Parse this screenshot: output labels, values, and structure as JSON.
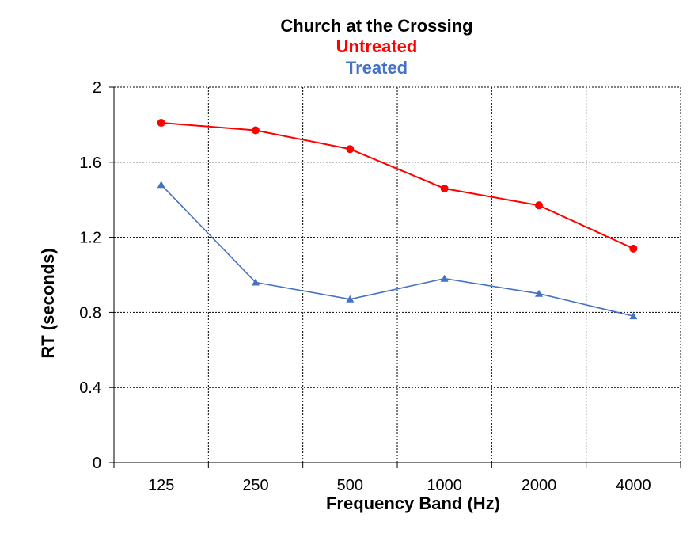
{
  "chart_data": {
    "type": "line",
    "title": "Church at the Crossing",
    "subtitles": [
      {
        "text": "Untreated",
        "color": "#ff0000"
      },
      {
        "text": "Treated",
        "color": "#4472c4"
      }
    ],
    "xlabel": "Frequency Band (Hz)",
    "ylabel": "RT (seconds)",
    "categories": [
      "125",
      "250",
      "500",
      "1000",
      "2000",
      "4000"
    ],
    "ylim": [
      0,
      2
    ],
    "yticks": [
      "0",
      "0.4",
      "0.8",
      "1.2",
      "1.6",
      "2"
    ],
    "grid": true,
    "series": [
      {
        "name": "Untreated",
        "color": "#ff0000",
        "marker": "circle",
        "values": [
          1.81,
          1.77,
          1.67,
          1.46,
          1.37,
          1.14
        ]
      },
      {
        "name": "Treated",
        "color": "#4472c4",
        "marker": "triangle",
        "values": [
          1.48,
          0.96,
          0.87,
          0.98,
          0.9,
          0.78
        ]
      }
    ]
  }
}
